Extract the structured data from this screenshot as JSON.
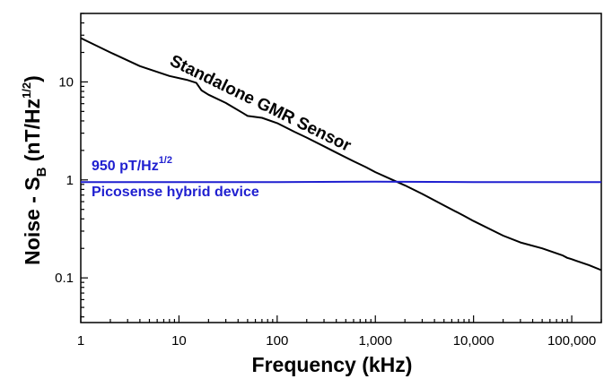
{
  "chart_data": {
    "type": "line",
    "xlabel": "Frequency (kHz)",
    "ylabel_parts": {
      "main": "Noise - S",
      "sub": "B",
      "unit_open": " (nT/Hz",
      "sup": "1/2",
      "unit_close": ")"
    },
    "x_scale": "log",
    "y_scale": "log",
    "xlim": [
      1,
      200000
    ],
    "ylim": [
      0.035,
      50
    ],
    "x_ticks": [
      1,
      10,
      100,
      1000,
      10000,
      100000
    ],
    "x_tick_labels": [
      "1",
      "10",
      "100",
      "1,000",
      "10,000",
      "100,000"
    ],
    "y_ticks": [
      0.1,
      1,
      10
    ],
    "y_tick_labels": [
      "0.1",
      "1",
      "10"
    ],
    "grid": false,
    "series": [
      {
        "name": "Standalone GMR Sensor",
        "color": "#000000",
        "x": [
          1,
          2,
          4,
          8,
          12,
          15,
          17,
          20,
          30,
          45,
          50,
          70,
          100,
          150,
          200,
          300,
          400,
          600,
          800,
          1000,
          1500,
          2000,
          3000,
          5000,
          8000,
          10000,
          20000,
          30000,
          50000,
          80000,
          90000,
          100000,
          110000,
          150000,
          200000
        ],
        "y": [
          28,
          20,
          14.5,
          11.5,
          10.5,
          9.8,
          8.2,
          7.4,
          6.1,
          4.8,
          4.5,
          4.3,
          3.8,
          3.1,
          2.7,
          2.2,
          1.9,
          1.55,
          1.35,
          1.2,
          1.0,
          0.88,
          0.72,
          0.55,
          0.43,
          0.38,
          0.27,
          0.23,
          0.2,
          0.17,
          0.16,
          0.155,
          0.15,
          0.135,
          0.12
        ]
      },
      {
        "name": "Picosense hybrid device",
        "color": "#1f1fd0",
        "x": [
          1,
          10,
          100,
          1000,
          10000,
          100000,
          200000
        ],
        "y": [
          0.95,
          0.95,
          0.95,
          0.96,
          0.95,
          0.95,
          0.95
        ]
      }
    ],
    "annotations": {
      "gmr_label": "Standalone GMR Sensor",
      "level_main": "950 pT/Hz",
      "level_sup": "1/2",
      "hybrid_label": "Picosense hybrid device"
    }
  }
}
